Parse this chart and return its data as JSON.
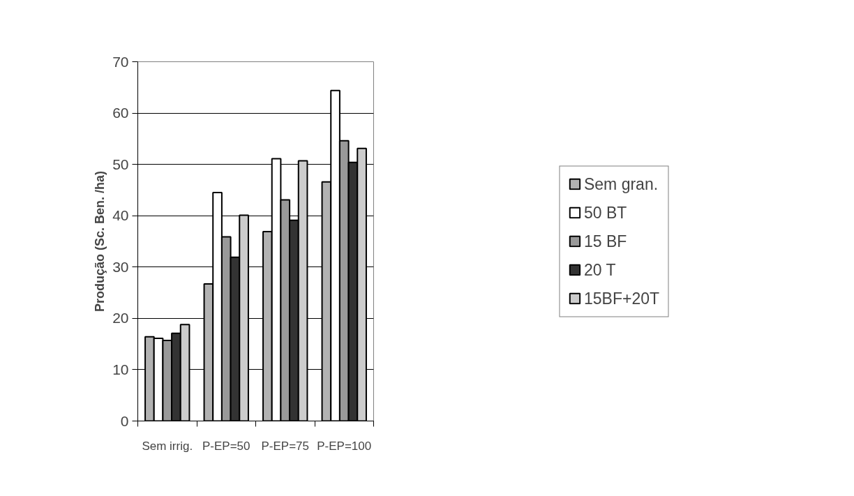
{
  "chart_data": {
    "type": "bar",
    "ylabel": "Produção (Sc. Ben. /ha)",
    "categories": [
      "Sem irrig.",
      "P-EP=50",
      "P-EP=75",
      "P-EP=100"
    ],
    "series": [
      {
        "name": "Sem gran.",
        "color": "#b2b2b2",
        "values": [
          16.4,
          26.7,
          36.9,
          46.6
        ]
      },
      {
        "name": "50 BT",
        "color": "#ffffff",
        "values": [
          16.1,
          44.5,
          51.1,
          64.4
        ]
      },
      {
        "name": "15 BF",
        "color": "#999999",
        "values": [
          15.7,
          35.9,
          43.1,
          54.6
        ]
      },
      {
        "name": "20 T",
        "color": "#333333",
        "values": [
          17.1,
          31.9,
          39.1,
          50.4
        ]
      },
      {
        "name": "15BF+20T",
        "color": "#cccccc",
        "values": [
          18.8,
          40.1,
          50.7,
          53.1
        ]
      }
    ],
    "ylim": [
      0,
      70
    ],
    "yticks": [
      0,
      10,
      20,
      30,
      40,
      50,
      60,
      70
    ],
    "grid": "y",
    "legend": "right"
  }
}
